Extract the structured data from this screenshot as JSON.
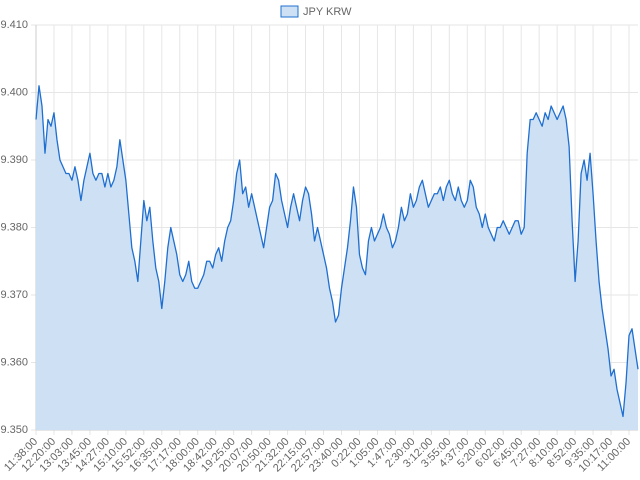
{
  "chart_data": {
    "type": "line",
    "categories": [
      "11:38:00",
      null,
      null,
      null,
      null,
      null,
      "12:20:00",
      null,
      null,
      null,
      null,
      null,
      "13:03:00",
      null,
      null,
      null,
      null,
      null,
      "13:45:00",
      null,
      null,
      null,
      null,
      null,
      "14:27:00",
      null,
      null,
      null,
      null,
      null,
      "15:10:00",
      null,
      null,
      null,
      null,
      null,
      "15:52:00",
      null,
      null,
      null,
      null,
      null,
      "16:35:00",
      null,
      null,
      null,
      null,
      null,
      "17:17:00",
      null,
      null,
      null,
      null,
      null,
      "18:00:00",
      null,
      null,
      null,
      null,
      null,
      "18:42:00",
      null,
      null,
      null,
      null,
      null,
      "19:25:00",
      null,
      null,
      null,
      null,
      null,
      "20:07:00",
      null,
      null,
      null,
      null,
      null,
      "20:50:00",
      null,
      null,
      null,
      null,
      null,
      "21:32:00",
      null,
      null,
      null,
      null,
      null,
      "22:15:00",
      null,
      null,
      null,
      null,
      null,
      "22:57:00",
      null,
      null,
      null,
      null,
      null,
      "23:40:00",
      null,
      null,
      null,
      null,
      null,
      "0:22:00",
      null,
      null,
      null,
      null,
      null,
      "1:05:00",
      null,
      null,
      null,
      null,
      null,
      "1:47:00",
      null,
      null,
      null,
      null,
      null,
      "2:30:00",
      null,
      null,
      null,
      null,
      null,
      "3:12:00",
      null,
      null,
      null,
      null,
      null,
      "3:55:00",
      null,
      null,
      null,
      null,
      null,
      "4:37:00",
      null,
      null,
      null,
      null,
      null,
      "5:20:00",
      null,
      null,
      null,
      null,
      null,
      "6:02:00",
      null,
      null,
      null,
      null,
      null,
      "6:45:00",
      null,
      null,
      null,
      null,
      null,
      "7:27:00",
      null,
      null,
      null,
      null,
      null,
      "8:10:00",
      null,
      null,
      null,
      null,
      null,
      "8:52:00",
      null,
      null,
      null,
      null,
      null,
      "9:35:00",
      null,
      null,
      null,
      null,
      null,
      "10:17:00",
      null,
      null,
      null,
      null,
      null,
      "11:00:00",
      null,
      null,
      null
    ],
    "series": [
      {
        "name": "JPY KRW",
        "color": "#1f6fd0",
        "fill": "#cde0f4",
        "values": [
          9.396,
          9.401,
          9.398,
          9.391,
          9.396,
          9.395,
          9.397,
          9.393,
          9.39,
          9.389,
          9.388,
          9.388,
          9.387,
          9.389,
          9.387,
          9.384,
          9.387,
          9.389,
          9.391,
          9.388,
          9.387,
          9.388,
          9.388,
          9.386,
          9.388,
          9.386,
          9.387,
          9.389,
          9.393,
          9.39,
          9.387,
          9.382,
          9.377,
          9.375,
          9.372,
          9.378,
          9.384,
          9.381,
          9.383,
          9.378,
          9.374,
          9.372,
          9.368,
          9.372,
          9.377,
          9.38,
          9.378,
          9.376,
          9.373,
          9.372,
          9.373,
          9.375,
          9.372,
          9.371,
          9.371,
          9.372,
          9.373,
          9.375,
          9.375,
          9.374,
          9.376,
          9.377,
          9.375,
          9.378,
          9.38,
          9.381,
          9.384,
          9.388,
          9.39,
          9.385,
          9.386,
          9.383,
          9.385,
          9.383,
          9.381,
          9.379,
          9.377,
          9.38,
          9.383,
          9.384,
          9.388,
          9.387,
          9.384,
          9.382,
          9.38,
          9.383,
          9.385,
          9.383,
          9.381,
          9.384,
          9.386,
          9.385,
          9.382,
          9.378,
          9.38,
          9.378,
          9.376,
          9.374,
          9.371,
          9.369,
          9.366,
          9.367,
          9.371,
          9.374,
          9.377,
          9.381,
          9.386,
          9.383,
          9.376,
          9.374,
          9.373,
          9.378,
          9.38,
          9.378,
          9.379,
          9.38,
          9.382,
          9.38,
          9.379,
          9.377,
          9.378,
          9.38,
          9.383,
          9.381,
          9.382,
          9.385,
          9.383,
          9.384,
          9.386,
          9.387,
          9.385,
          9.383,
          9.384,
          9.385,
          9.385,
          9.386,
          9.384,
          9.386,
          9.387,
          9.385,
          9.384,
          9.386,
          9.384,
          9.383,
          9.384,
          9.387,
          9.386,
          9.383,
          9.382,
          9.38,
          9.382,
          9.38,
          9.379,
          9.378,
          9.38,
          9.38,
          9.381,
          9.38,
          9.379,
          9.38,
          9.381,
          9.381,
          9.379,
          9.38,
          9.391,
          9.396,
          9.396,
          9.397,
          9.396,
          9.395,
          9.397,
          9.396,
          9.398,
          9.397,
          9.396,
          9.397,
          9.398,
          9.396,
          9.392,
          9.381,
          9.372,
          9.378,
          9.388,
          9.39,
          9.387,
          9.391,
          9.385,
          9.378,
          9.372,
          9.368,
          9.365,
          9.362,
          9.358,
          9.359,
          9.356,
          9.354,
          9.352,
          9.357,
          9.364,
          9.365,
          9.362,
          9.359
        ]
      }
    ],
    "ylim": [
      9.35,
      9.41
    ],
    "yticks": [
      {
        "value": 9.35,
        "label": "9.350"
      },
      {
        "value": 9.36,
        "label": "9.360"
      },
      {
        "value": 9.37,
        "label": "9.370"
      },
      {
        "value": 9.38,
        "label": "9.380"
      },
      {
        "value": 9.39,
        "label": "9.390"
      },
      {
        "value": 9.4,
        "label": "9.400"
      },
      {
        "value": 9.41,
        "label": "9.410"
      }
    ],
    "grid": true,
    "legend": "top"
  }
}
